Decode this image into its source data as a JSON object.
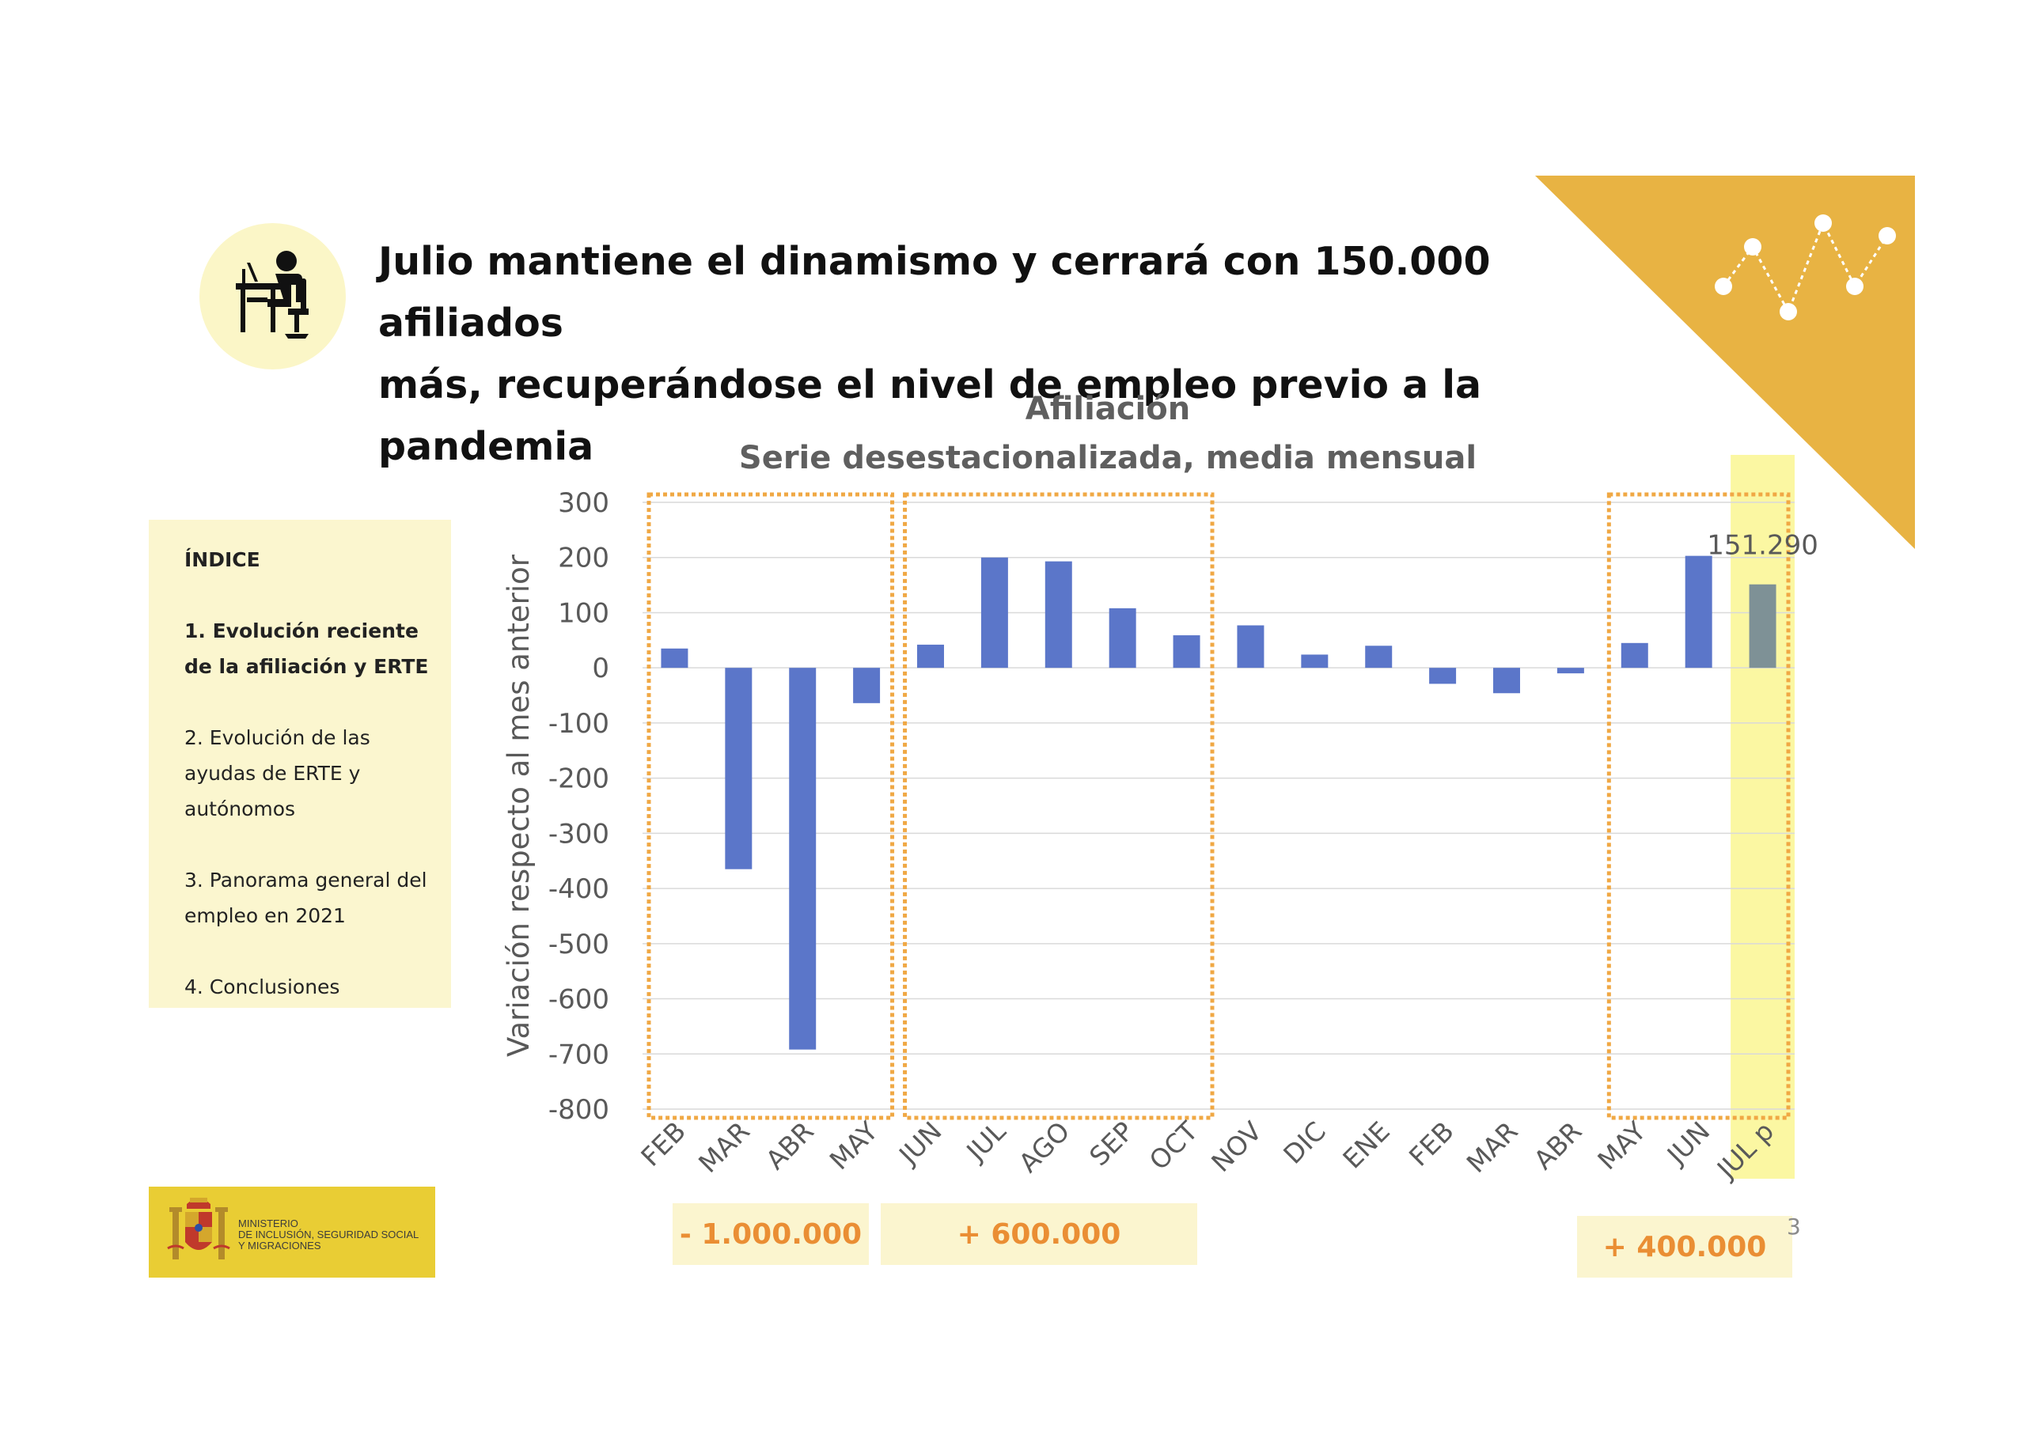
{
  "header": {
    "title_line1": "Julio mantiene el dinamismo y cerrará con 150.000 afiliados",
    "title_line2": "más, recuperándose el nivel de empleo previo a la pandemia"
  },
  "index": {
    "heading": "ÍNDICE",
    "item1": "1. Evolución reciente de la afiliación y ERTE",
    "item2": "2. Evolución de las ayudas de ERTE y autónomos",
    "item3": "3. Panorama general del empleo en 2021",
    "item4": "4. Conclusiones"
  },
  "logo": {
    "line1": "MINISTERIO",
    "line2": "DE INCLUSIÓN, SEGURIDAD SOCIAL",
    "line3": "Y MIGRACIONES"
  },
  "callouts": {
    "first": "- 1.000.000",
    "second": "+ 600.000",
    "third": "+ 400.000"
  },
  "page_number": "3",
  "colors": {
    "bar": "#5b76c9",
    "highlight_bar": "#7e9196",
    "dashed_box": "#f0a844",
    "highlight_band": "#fbf7a2",
    "corner_triangle": "#e8b343",
    "icon_circle": "#fbf6c7"
  },
  "icons": {
    "header": "person-at-computer-icon",
    "corner": "zigzag-line-chart-icon",
    "logo": "coat-of-arms-icon"
  },
  "chart_data": {
    "type": "bar",
    "title": "Afiliación",
    "subtitle": "Serie desestacionalizada, media mensual",
    "ylabel": "Variación respecto al mes anterior",
    "xlabel": "",
    "ylim": [
      -800,
      300
    ],
    "yticks": [
      300,
      200,
      100,
      0,
      -100,
      -200,
      -300,
      -400,
      -500,
      -600,
      -700,
      -800
    ],
    "categories": [
      "FEB",
      "MAR",
      "ABR",
      "MAY",
      "JUN",
      "JUL",
      "AGO",
      "SEP",
      "OCT",
      "NOV",
      "DIC",
      "ENE",
      "FEB",
      "MAR",
      "ABR",
      "MAY",
      "JUN",
      "JUL p"
    ],
    "values": [
      35,
      -365,
      -692,
      -64,
      42,
      200,
      193,
      108,
      59,
      77,
      24,
      40,
      -29,
      -46,
      -10,
      45,
      203,
      151.29
    ],
    "highlight_index": 17,
    "data_label": "151.290",
    "grid": true
  }
}
